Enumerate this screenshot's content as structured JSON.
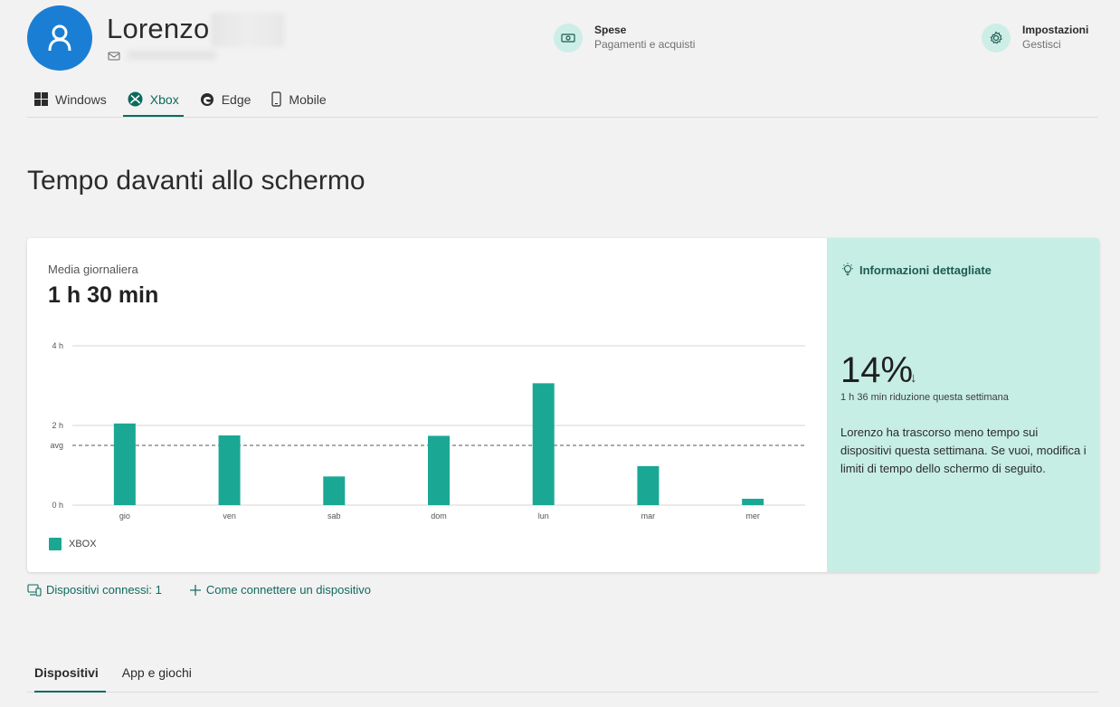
{
  "profile": {
    "name": "Lorenzo"
  },
  "header": {
    "spending": {
      "title": "Spese",
      "subtitle": "Pagamenti e acquisti"
    },
    "settings": {
      "title": "Impostazioni",
      "subtitle": "Gestisci"
    }
  },
  "tabs": [
    {
      "label": "Windows",
      "icon": "windows-icon"
    },
    {
      "label": "Xbox",
      "icon": "xbox-icon",
      "active": true
    },
    {
      "label": "Edge",
      "icon": "edge-icon"
    },
    {
      "label": "Mobile",
      "icon": "mobile-icon"
    }
  ],
  "page": {
    "title": "Tempo davanti allo schermo"
  },
  "summary": {
    "avg_label": "Media giornaliera",
    "avg_value": "1 h 30 min"
  },
  "chart_data": {
    "type": "bar",
    "categories": [
      "gio",
      "ven",
      "sab",
      "dom",
      "lun",
      "mar",
      "mer"
    ],
    "series": [
      {
        "name": "XBOX",
        "values": [
          2.05,
          1.75,
          0.72,
          1.74,
          3.06,
          0.98,
          0.16
        ]
      }
    ],
    "yticks": [
      "4 h",
      "2 h",
      "0 h"
    ],
    "ytick_values": [
      4,
      2,
      0
    ],
    "ylim": [
      0,
      4
    ],
    "avg_label": "avg",
    "avg_value": 1.5,
    "color": "#1aa895"
  },
  "insight": {
    "title": "Informazioni dettagliate",
    "percent": "14%",
    "arrow": "↓",
    "sub": "1 h 36 min riduzione questa settimana",
    "text": "Lorenzo ha trascorso meno tempo sui dispositivi questa settimana. Se vuoi, modifica i limiti di tempo dello schermo di seguito."
  },
  "links": {
    "connected": "Dispositivi connessi: 1",
    "how_to_connect": "Come connettere un dispositivo"
  },
  "bottom_tabs": [
    {
      "label": "Dispositivi",
      "active": true
    },
    {
      "label": "App e giochi"
    }
  ]
}
